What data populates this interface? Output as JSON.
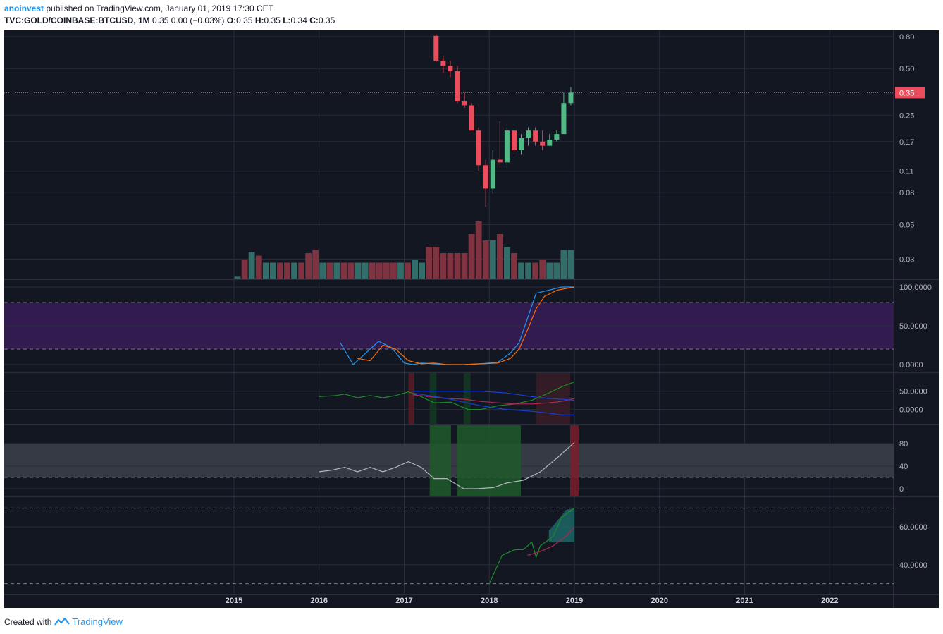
{
  "header": {
    "author": "anoinvest",
    "published_text": "published on TradingView.com, January 01, 2019 17:30 CET",
    "symbol": "TVC:GOLD/COINBASE:BTCUSD, 1M",
    "last_change": "0.35 0.00 (−0.03%)",
    "o_label": "O:",
    "o_value": "0.35",
    "h_label": "H:",
    "h_value": "0.35",
    "l_label": "L:",
    "l_value": "0.34",
    "c_label": "C:",
    "c_value": "0.35"
  },
  "footer": {
    "created_with": "Created with",
    "brand": "TradingView"
  },
  "colors": {
    "background": "#131722",
    "up": "#53b987",
    "down": "#eb4d5c",
    "price_line": "#eb4d5c",
    "vol_up": "#336d6a",
    "vol_down": "#7f323f",
    "band_purple": "#311b4f",
    "band_gray": "#363a45"
  },
  "chart_data": [
    {
      "type": "candlestick",
      "title": "",
      "price_label": "0.35",
      "y_scale": "log",
      "y_ticks": [
        "0.80",
        "0.50",
        "0.25",
        "0.17",
        "0.11",
        "0.08",
        "0.05",
        "0.03"
      ],
      "x_ticks": [
        "2015",
        "2016",
        "2017",
        "2018",
        "2019",
        "2020",
        "2021",
        "2022"
      ],
      "ohlc": [
        {
          "t": "2017-05",
          "o": 0.81,
          "h": 0.83,
          "l": 0.55,
          "c": 0.56
        },
        {
          "t": "2017-06",
          "o": 0.56,
          "h": 0.6,
          "l": 0.47,
          "c": 0.52
        },
        {
          "t": "2017-07",
          "o": 0.52,
          "h": 0.56,
          "l": 0.44,
          "c": 0.48
        },
        {
          "t": "2017-08",
          "o": 0.48,
          "h": 0.52,
          "l": 0.3,
          "c": 0.31
        },
        {
          "t": "2017-09",
          "o": 0.31,
          "h": 0.35,
          "l": 0.28,
          "c": 0.29
        },
        {
          "t": "2017-10",
          "o": 0.29,
          "h": 0.3,
          "l": 0.2,
          "c": 0.2
        },
        {
          "t": "2017-11",
          "o": 0.2,
          "h": 0.21,
          "l": 0.11,
          "c": 0.12
        },
        {
          "t": "2017-12",
          "o": 0.12,
          "h": 0.13,
          "l": 0.065,
          "c": 0.085
        },
        {
          "t": "2018-01",
          "o": 0.085,
          "h": 0.15,
          "l": 0.079,
          "c": 0.13
        },
        {
          "t": "2018-02",
          "o": 0.13,
          "h": 0.23,
          "l": 0.12,
          "c": 0.125
        },
        {
          "t": "2018-03",
          "o": 0.125,
          "h": 0.21,
          "l": 0.12,
          "c": 0.2
        },
        {
          "t": "2018-04",
          "o": 0.2,
          "h": 0.21,
          "l": 0.14,
          "c": 0.15
        },
        {
          "t": "2018-05",
          "o": 0.15,
          "h": 0.19,
          "l": 0.14,
          "c": 0.18
        },
        {
          "t": "2018-06",
          "o": 0.18,
          "h": 0.21,
          "l": 0.16,
          "c": 0.2
        },
        {
          "t": "2018-07",
          "o": 0.2,
          "h": 0.21,
          "l": 0.16,
          "c": 0.17
        },
        {
          "t": "2018-08",
          "o": 0.17,
          "h": 0.2,
          "l": 0.15,
          "c": 0.16
        },
        {
          "t": "2018-09",
          "o": 0.16,
          "h": 0.19,
          "l": 0.16,
          "c": 0.175
        },
        {
          "t": "2018-10",
          "o": 0.175,
          "h": 0.2,
          "l": 0.17,
          "c": 0.19
        },
        {
          "t": "2018-11",
          "o": 0.19,
          "h": 0.35,
          "l": 0.19,
          "c": 0.3
        },
        {
          "t": "2018-12",
          "o": 0.3,
          "h": 0.38,
          "l": 0.29,
          "c": 0.35
        }
      ],
      "volume": [
        {
          "t": "2015-01",
          "v": 3,
          "dir": "up"
        },
        {
          "t": "2015-02",
          "v": 30,
          "dir": "down"
        },
        {
          "t": "2015-03",
          "v": 42,
          "dir": "up"
        },
        {
          "t": "2015-04",
          "v": 36,
          "dir": "down"
        },
        {
          "t": "2015-05",
          "v": 25,
          "dir": "up"
        },
        {
          "t": "2015-06",
          "v": 25,
          "dir": "up"
        },
        {
          "t": "2015-07",
          "v": 25,
          "dir": "down"
        },
        {
          "t": "2015-08",
          "v": 25,
          "dir": "down"
        },
        {
          "t": "2015-09",
          "v": 25,
          "dir": "up"
        },
        {
          "t": "2015-10",
          "v": 25,
          "dir": "down"
        },
        {
          "t": "2015-11",
          "v": 40,
          "dir": "down"
        },
        {
          "t": "2015-12",
          "v": 45,
          "dir": "down"
        },
        {
          "t": "2016-01",
          "v": 25,
          "dir": "up"
        },
        {
          "t": "2016-02",
          "v": 25,
          "dir": "down"
        },
        {
          "t": "2016-03",
          "v": 25,
          "dir": "up"
        },
        {
          "t": "2016-04",
          "v": 25,
          "dir": "down"
        },
        {
          "t": "2016-05",
          "v": 25,
          "dir": "down"
        },
        {
          "t": "2016-06",
          "v": 25,
          "dir": "up"
        },
        {
          "t": "2016-07",
          "v": 25,
          "dir": "up"
        },
        {
          "t": "2016-08",
          "v": 25,
          "dir": "down"
        },
        {
          "t": "2016-09",
          "v": 25,
          "dir": "down"
        },
        {
          "t": "2016-10",
          "v": 25,
          "dir": "down"
        },
        {
          "t": "2016-11",
          "v": 25,
          "dir": "down"
        },
        {
          "t": "2016-12",
          "v": 25,
          "dir": "up"
        },
        {
          "t": "2017-01",
          "v": 25,
          "dir": "down"
        },
        {
          "t": "2017-02",
          "v": 30,
          "dir": "up"
        },
        {
          "t": "2017-03",
          "v": 25,
          "dir": "up"
        },
        {
          "t": "2017-04",
          "v": 50,
          "dir": "down"
        },
        {
          "t": "2017-05",
          "v": 50,
          "dir": "down"
        },
        {
          "t": "2017-06",
          "v": 40,
          "dir": "down"
        },
        {
          "t": "2017-07",
          "v": 40,
          "dir": "down"
        },
        {
          "t": "2017-08",
          "v": 40,
          "dir": "down"
        },
        {
          "t": "2017-09",
          "v": 40,
          "dir": "down"
        },
        {
          "t": "2017-10",
          "v": 70,
          "dir": "down"
        },
        {
          "t": "2017-11",
          "v": 90,
          "dir": "down"
        },
        {
          "t": "2017-12",
          "v": 60,
          "dir": "down"
        },
        {
          "t": "2018-01",
          "v": 60,
          "dir": "up"
        },
        {
          "t": "2018-02",
          "v": 70,
          "dir": "down"
        },
        {
          "t": "2018-03",
          "v": 50,
          "dir": "up"
        },
        {
          "t": "2018-04",
          "v": 40,
          "dir": "down"
        },
        {
          "t": "2018-05",
          "v": 25,
          "dir": "up"
        },
        {
          "t": "2018-06",
          "v": 25,
          "dir": "up"
        },
        {
          "t": "2018-07",
          "v": 25,
          "dir": "down"
        },
        {
          "t": "2018-08",
          "v": 30,
          "dir": "down"
        },
        {
          "t": "2018-09",
          "v": 25,
          "dir": "up"
        },
        {
          "t": "2018-10",
          "v": 25,
          "dir": "up"
        },
        {
          "t": "2018-11",
          "v": 45,
          "dir": "up"
        },
        {
          "t": "2018-12",
          "v": 45,
          "dir": "up"
        }
      ]
    },
    {
      "type": "line",
      "title": "",
      "y_ticks": [
        "100.0000",
        "50.0000",
        "0.0000"
      ],
      "ylim": [
        0,
        100
      ],
      "band": [
        20,
        80
      ],
      "series": [
        {
          "color": "#2196f3",
          "points": [
            [
              2016.25,
              28
            ],
            [
              2016.4,
              0
            ],
            [
              2016.55,
              15
            ],
            [
              2016.7,
              30
            ],
            [
              2016.85,
              22
            ],
            [
              2017.0,
              2
            ],
            [
              2017.1,
              0
            ],
            [
              2017.2,
              2
            ],
            [
              2017.35,
              1
            ],
            [
              2017.5,
              0
            ],
            [
              2017.7,
              0
            ],
            [
              2017.9,
              1
            ],
            [
              2018.1,
              3
            ],
            [
              2018.25,
              15
            ],
            [
              2018.35,
              28
            ],
            [
              2018.45,
              60
            ],
            [
              2018.55,
              92
            ],
            [
              2018.7,
              96
            ],
            [
              2018.85,
              100
            ],
            [
              2019.0,
              100
            ]
          ]
        },
        {
          "color": "#ff6d00",
          "points": [
            [
              2016.45,
              8
            ],
            [
              2016.6,
              5
            ],
            [
              2016.75,
              25
            ],
            [
              2016.9,
              20
            ],
            [
              2017.05,
              5
            ],
            [
              2017.2,
              1
            ],
            [
              2017.35,
              2
            ],
            [
              2017.5,
              0
            ],
            [
              2017.7,
              0
            ],
            [
              2017.9,
              1
            ],
            [
              2018.1,
              2
            ],
            [
              2018.25,
              8
            ],
            [
              2018.35,
              20
            ],
            [
              2018.45,
              45
            ],
            [
              2018.55,
              72
            ],
            [
              2018.65,
              88
            ],
            [
              2018.8,
              96
            ],
            [
              2019.0,
              100
            ]
          ]
        }
      ]
    },
    {
      "type": "line",
      "title": "",
      "y_ticks": [
        "50.0000",
        "0.0000"
      ],
      "ylim": [
        -20,
        80
      ],
      "series": [
        {
          "color": "#1b8b2a",
          "points": [
            [
              2016.0,
              35
            ],
            [
              2016.2,
              38
            ],
            [
              2016.3,
              42
            ],
            [
              2016.45,
              32
            ],
            [
              2016.6,
              38
            ],
            [
              2016.75,
              32
            ],
            [
              2016.9,
              38
            ],
            [
              2017.05,
              48
            ],
            [
              2017.2,
              35
            ],
            [
              2017.35,
              18
            ],
            [
              2017.55,
              20
            ],
            [
              2017.75,
              0
            ],
            [
              2017.9,
              0
            ],
            [
              2018.1,
              10
            ],
            [
              2018.3,
              15
            ],
            [
              2018.5,
              25
            ],
            [
              2018.7,
              45
            ],
            [
              2018.85,
              62
            ],
            [
              2019.0,
              75
            ]
          ]
        },
        {
          "color": "#b22850",
          "points": [
            [
              2017.1,
              40
            ],
            [
              2017.3,
              35
            ],
            [
              2017.5,
              30
            ],
            [
              2017.7,
              28
            ],
            [
              2017.9,
              22
            ],
            [
              2018.1,
              18
            ],
            [
              2018.3,
              15
            ],
            [
              2018.5,
              15
            ],
            [
              2018.7,
              18
            ],
            [
              2018.85,
              22
            ],
            [
              2019.0,
              30
            ]
          ]
        },
        {
          "color": "#1a3ecf",
          "points": [
            [
              2017.1,
              50
            ],
            [
              2017.5,
              50
            ],
            [
              2017.9,
              50
            ],
            [
              2018.2,
              45
            ],
            [
              2018.5,
              35
            ],
            [
              2018.7,
              30
            ],
            [
              2018.85,
              28
            ],
            [
              2019.0,
              25
            ]
          ]
        },
        {
          "color": "#1a3ecf",
          "points": [
            [
              2017.1,
              45
            ],
            [
              2017.5,
              30
            ],
            [
              2017.9,
              10
            ],
            [
              2018.2,
              0
            ],
            [
              2018.5,
              -5
            ],
            [
              2018.7,
              -10
            ],
            [
              2018.85,
              -15
            ],
            [
              2019.0,
              -15
            ]
          ]
        }
      ],
      "highlight_ranges": [
        {
          "start": 2017.05,
          "end": 2017.12,
          "color": "#5a1d26"
        },
        {
          "start": 2017.3,
          "end": 2017.38,
          "color": "#143a20"
        },
        {
          "start": 2017.7,
          "end": 2017.78,
          "color": "#143a20"
        },
        {
          "start": 2018.55,
          "end": 2018.95,
          "color": "#3a1d26"
        }
      ]
    },
    {
      "type": "line",
      "title": "",
      "y_ticks": [
        "80",
        "40",
        "0"
      ],
      "ylim": [
        0,
        100
      ],
      "band": [
        20,
        80
      ],
      "series": [
        {
          "color": "#b2b5be",
          "points": [
            [
              2016.0,
              30
            ],
            [
              2016.15,
              33
            ],
            [
              2016.3,
              38
            ],
            [
              2016.45,
              30
            ],
            [
              2016.6,
              38
            ],
            [
              2016.75,
              30
            ],
            [
              2016.9,
              38
            ],
            [
              2017.05,
              48
            ],
            [
              2017.2,
              38
            ],
            [
              2017.35,
              18
            ],
            [
              2017.5,
              18
            ],
            [
              2017.7,
              0
            ],
            [
              2017.85,
              0
            ],
            [
              2018.05,
              2
            ],
            [
              2018.2,
              10
            ],
            [
              2018.4,
              15
            ],
            [
              2018.6,
              30
            ],
            [
              2018.8,
              55
            ],
            [
              2019.0,
              82
            ]
          ]
        }
      ],
      "highlight_ranges": [
        {
          "start": 2017.3,
          "end": 2017.55,
          "color": "#1e5a2a"
        },
        {
          "start": 2017.62,
          "end": 2018.37,
          "color": "#1e5a2a"
        },
        {
          "start": 2018.95,
          "end": 2019.05,
          "color": "#7a1f2a"
        }
      ]
    },
    {
      "type": "line",
      "title": "",
      "y_ticks": [
        "60.0000",
        "40.0000"
      ],
      "ylim": [
        28,
        72
      ],
      "levels": [
        70,
        30
      ],
      "series": [
        {
          "color": "#1b8b2a",
          "points": [
            [
              2018.0,
              30
            ],
            [
              2018.15,
              45
            ],
            [
              2018.3,
              48
            ],
            [
              2018.4,
              48
            ],
            [
              2018.5,
              52
            ],
            [
              2018.55,
              44
            ],
            [
              2018.6,
              50
            ],
            [
              2018.75,
              55
            ],
            [
              2018.85,
              65
            ],
            [
              2019.0,
              70
            ]
          ]
        },
        {
          "color": "#b22850",
          "points": [
            [
              2018.45,
              45
            ],
            [
              2018.6,
              47
            ],
            [
              2018.75,
              50
            ],
            [
              2018.9,
              55
            ],
            [
              2019.0,
              60
            ]
          ]
        }
      ],
      "cloud": [
        [
          2018.7,
          52,
          58
        ],
        [
          2018.85,
          52,
          66
        ],
        [
          2018.9,
          52,
          69
        ],
        [
          2019.0,
          52,
          70
        ]
      ]
    }
  ]
}
